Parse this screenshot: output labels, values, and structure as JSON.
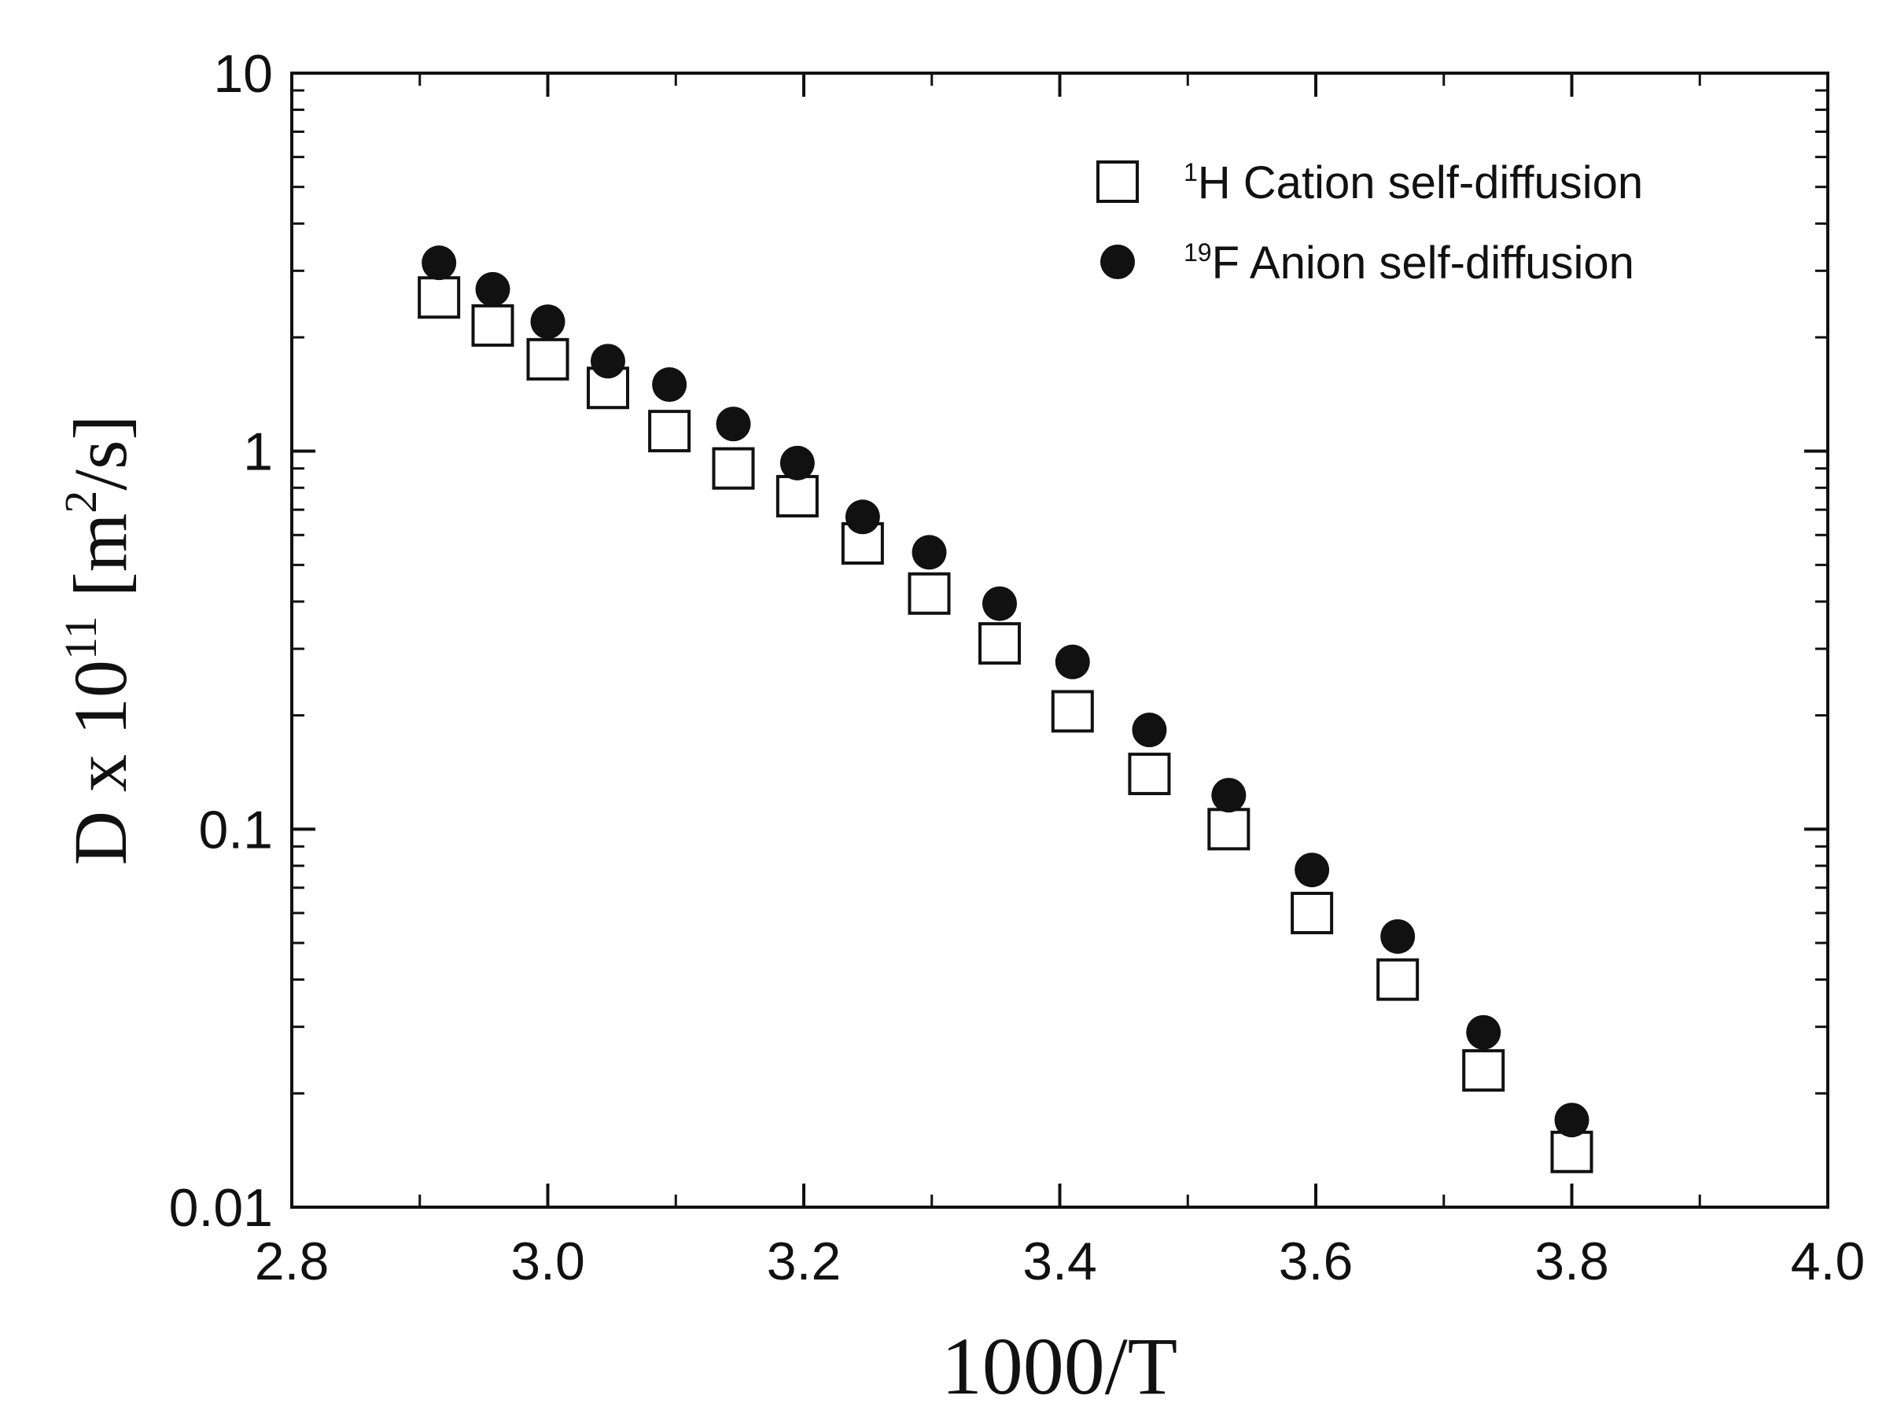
{
  "chart_data": {
    "type": "scatter",
    "xlabel": "1000/T",
    "ylabel": {
      "prefix": "D x 10",
      "exponent": "11",
      "unit_open": " [m",
      "unit_exponent": "2",
      "unit_close": "/s]"
    },
    "xlim": [
      2.8,
      4.0
    ],
    "ylim": [
      0.01,
      10
    ],
    "yscale": "log",
    "x_ticks": [
      "2.8",
      "3.0",
      "3.2",
      "3.4",
      "3.6",
      "3.8",
      "4.0"
    ],
    "y_ticks": [
      "0.01",
      "0.1",
      "1",
      "10"
    ],
    "grid": false,
    "legend_position": "top-right",
    "series": [
      {
        "name_sup": "1",
        "name": "H Cation self-diffusion",
        "marker": "open-square",
        "color": "#111111",
        "x": [
          2.915,
          2.957,
          3.0,
          3.047,
          3.095,
          3.145,
          3.195,
          3.246,
          3.298,
          3.353,
          3.41,
          3.47,
          3.532,
          3.597,
          3.664,
          3.731,
          3.8
        ],
        "y": [
          2.55,
          2.15,
          1.75,
          1.47,
          1.13,
          0.9,
          0.76,
          0.57,
          0.42,
          0.31,
          0.205,
          0.14,
          0.1,
          0.06,
          0.04,
          0.023,
          0.014
        ]
      },
      {
        "name_sup": "19",
        "name": "F Anion self-diffusion",
        "marker": "filled-circle",
        "color": "#111111",
        "x": [
          2.915,
          2.957,
          3.0,
          3.047,
          3.095,
          3.145,
          3.195,
          3.246,
          3.298,
          3.353,
          3.41,
          3.47,
          3.532,
          3.597,
          3.664,
          3.731,
          3.8
        ],
        "y": [
          3.15,
          2.68,
          2.2,
          1.73,
          1.5,
          1.18,
          0.93,
          0.67,
          0.54,
          0.395,
          0.277,
          0.183,
          0.123,
          0.078,
          0.052,
          0.029,
          0.017
        ]
      }
    ]
  }
}
